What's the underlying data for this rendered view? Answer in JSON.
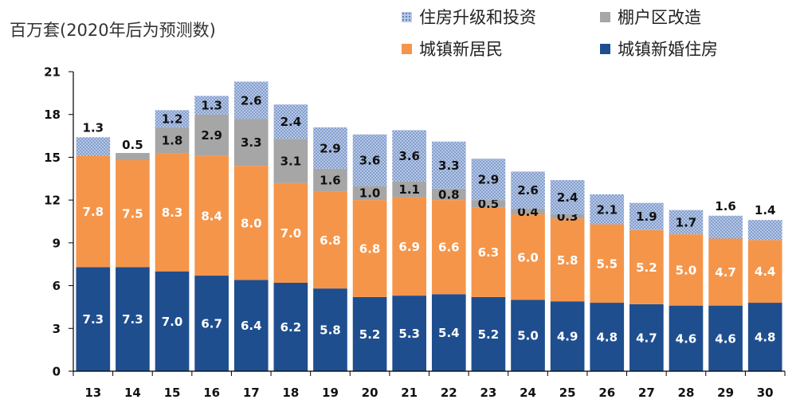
{
  "chart_data": {
    "type": "bar",
    "stacked": true,
    "ylabel": "百万套(2020年后为预测数)",
    "ylim": [
      0,
      21
    ],
    "yticks": [
      0,
      3,
      6,
      9,
      12,
      15,
      18,
      21
    ],
    "categories": [
      "13",
      "14",
      "15",
      "16",
      "17",
      "18",
      "19",
      "20",
      "21",
      "22",
      "23",
      "24",
      "25",
      "26",
      "27",
      "28",
      "29",
      "30"
    ],
    "series": [
      {
        "name": "城镇新婚住房",
        "color": "#1f4e8f",
        "values": [
          7.3,
          7.3,
          7.0,
          6.7,
          6.4,
          6.2,
          5.8,
          5.2,
          5.3,
          5.4,
          5.2,
          5.0,
          4.9,
          4.8,
          4.7,
          4.6,
          4.6,
          4.8
        ]
      },
      {
        "name": "城镇新居民",
        "color": "#f5954a",
        "values": [
          7.8,
          7.5,
          8.3,
          8.4,
          8.0,
          7.0,
          6.8,
          6.8,
          6.9,
          6.6,
          6.3,
          6.0,
          5.8,
          5.5,
          5.2,
          5.0,
          4.7,
          4.4
        ]
      },
      {
        "name": "棚户区改造",
        "color": "#a6a6a6",
        "values": [
          null,
          0.5,
          1.8,
          2.9,
          3.3,
          3.1,
          1.6,
          1.0,
          1.1,
          0.8,
          0.5,
          0.4,
          0.3,
          null,
          null,
          null,
          null,
          null
        ]
      },
      {
        "name": "住房升级和投资",
        "color": "#b8c8e6",
        "values": [
          1.3,
          null,
          1.2,
          1.3,
          2.6,
          2.4,
          2.9,
          3.6,
          3.6,
          3.3,
          2.9,
          2.6,
          2.4,
          2.1,
          1.9,
          1.7,
          1.6,
          1.4
        ]
      }
    ],
    "legend": {
      "position": "top-right",
      "items": [
        {
          "label": "住房升级和投资",
          "series": 3
        },
        {
          "label": "棚户区改造",
          "series": 2
        },
        {
          "label": "城镇新居民",
          "series": 1
        },
        {
          "label": "城镇新婚住房",
          "series": 0
        }
      ]
    }
  }
}
